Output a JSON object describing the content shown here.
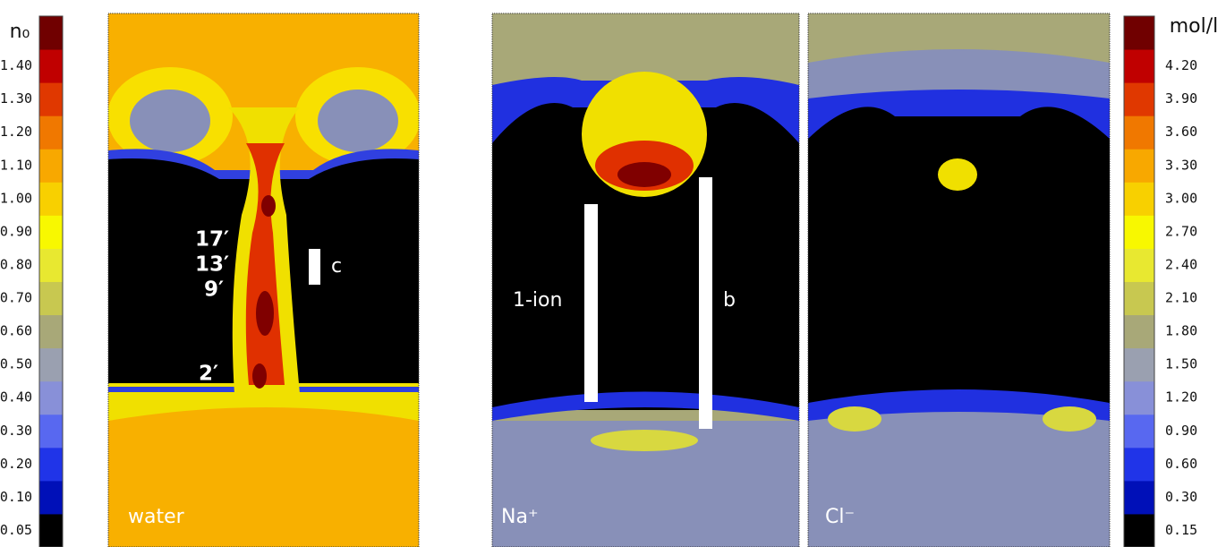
{
  "colorbars": [
    {
      "title": "n₀",
      "ticks": [
        "0.05",
        "0.10",
        "0.20",
        "0.30",
        "0.40",
        "0.50",
        "0.60",
        "0.70",
        "0.80",
        "0.90",
        "1.00",
        "1.10",
        "1.20",
        "1.30",
        "1.40"
      ],
      "colors": [
        "#000000",
        "#0010b8",
        "#2034e8",
        "#5868f0",
        "#8890d8",
        "#9aa0b0",
        "#a8a878",
        "#c8c850",
        "#e8e830",
        "#f8f800",
        "#f8d000",
        "#f8a800",
        "#f07800",
        "#e03800",
        "#c00000",
        "#700000"
      ]
    },
    {
      "title": "mol/l",
      "ticks": [
        "0.15",
        "0.30",
        "0.60",
        "0.90",
        "1.20",
        "1.50",
        "1.80",
        "2.10",
        "2.40",
        "2.70",
        "3.00",
        "3.30",
        "3.60",
        "3.90",
        "4.20"
      ],
      "colors": [
        "#000000",
        "#0010b8",
        "#2034e8",
        "#5868f0",
        "#8890d8",
        "#9aa0b0",
        "#a8a878",
        "#c8c850",
        "#e8e830",
        "#f8f800",
        "#f8d000",
        "#f8a800",
        "#f07800",
        "#e03800",
        "#c00000",
        "#700000"
      ]
    }
  ],
  "panels": [
    {
      "label": "water",
      "annotations": [
        "17′",
        "13′",
        "9′",
        "2′",
        "c"
      ]
    },
    {
      "label": "Na⁺",
      "annotations": [
        "1-ion",
        "b"
      ]
    },
    {
      "label": "Cl⁻",
      "annotations": []
    }
  ]
}
